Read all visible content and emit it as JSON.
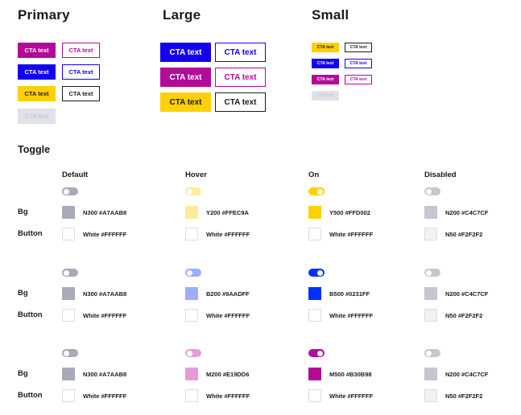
{
  "sections": {
    "primary": "Primary",
    "large": "Large",
    "small": "Small",
    "toggle": "Toggle"
  },
  "cta_text": "CTA text",
  "colors": {
    "blue": "#1400F0",
    "magenta": "#B30B98",
    "yellow": "#FFD002",
    "dark": "#1a1a1a",
    "disabled_bg": "#E1E2E8",
    "disabled_text": "#C4C7CF"
  },
  "toggle": {
    "columns": [
      "Default",
      "Hover",
      "On",
      "Disabled"
    ],
    "row_labels": {
      "bg": "Bg",
      "button": "Button"
    },
    "groups": [
      {
        "bg": [
          {
            "label": "N300 #A7AAB8",
            "color": "#A7AAB8"
          },
          {
            "label": "Y200 #FFEC9A",
            "color": "#FFEC9A"
          },
          {
            "label": "Y500 #FFD002",
            "color": "#FFD002"
          },
          {
            "label": "N200 #C4C7CF",
            "color": "#C4C7CF"
          }
        ],
        "button": [
          {
            "label": "White #FFFFFF",
            "color": "#FFFFFF"
          },
          {
            "label": "White #FFFFFF",
            "color": "#FFFFFF"
          },
          {
            "label": "White #FFFFFF",
            "color": "#FFFFFF"
          },
          {
            "label": "N50 #F2F2F2",
            "color": "#F2F2F2"
          }
        ]
      },
      {
        "bg": [
          {
            "label": "N300 #A7AAB8",
            "color": "#A7AAB8"
          },
          {
            "label": "B200 #9AADFF",
            "color": "#9AADFF"
          },
          {
            "label": "B500 #0231FF",
            "color": "#0231FF"
          },
          {
            "label": "N200 #C4C7CF",
            "color": "#C4C7CF"
          }
        ],
        "button": [
          {
            "label": "White #FFFFFF",
            "color": "#FFFFFF"
          },
          {
            "label": "White #FFFFFF",
            "color": "#FFFFFF"
          },
          {
            "label": "White #FFFFFF",
            "color": "#FFFFFF"
          },
          {
            "label": "N50 #F2F2F2",
            "color": "#F2F2F2"
          }
        ]
      },
      {
        "bg": [
          {
            "label": "N300 #A7AAB8",
            "color": "#A7AAB8"
          },
          {
            "label": "M200 #E19DD6",
            "color": "#E19DD6"
          },
          {
            "label": "M500 #B30B98",
            "color": "#B30B98"
          },
          {
            "label": "N200 #C4C7CF",
            "color": "#C4C7CF"
          }
        ],
        "button": [
          {
            "label": "White #FFFFFF",
            "color": "#FFFFFF"
          },
          {
            "label": "White #FFFFFF",
            "color": "#FFFFFF"
          },
          {
            "label": "White #FFFFFF",
            "color": "#FFFFFF"
          },
          {
            "label": "N50 #F2F2F2",
            "color": "#F2F2F2"
          }
        ]
      }
    ]
  }
}
